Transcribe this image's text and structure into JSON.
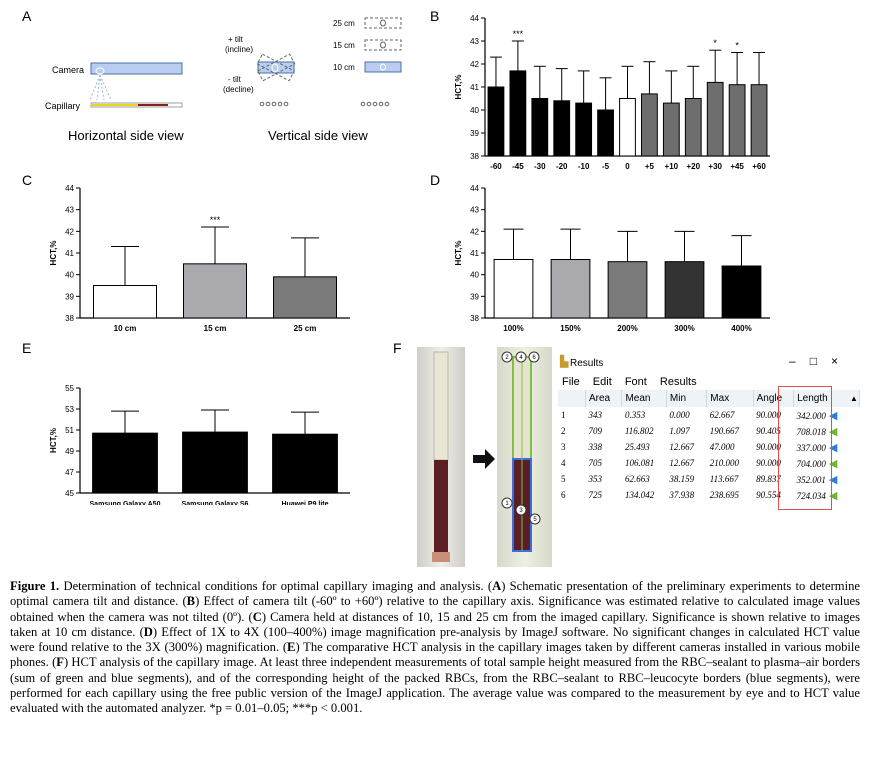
{
  "panels": {
    "a": {
      "letter": "A",
      "camera_label": "Camera",
      "capillary_label": "Capillary",
      "plus_tilt": "+ tilt",
      "incline": "(incline)",
      "minus_tilt": "- tilt",
      "decline": "(decline)",
      "d25": "25 cm",
      "d15": "15 cm",
      "d10": "10 cm",
      "horizontal": "Horizontal side view",
      "vertical": "Vertical side view"
    },
    "b": {
      "letter": "B"
    },
    "c": {
      "letter": "C"
    },
    "d": {
      "letter": "D"
    },
    "e": {
      "letter": "E"
    },
    "f": {
      "letter": "F"
    }
  },
  "chart_data": [
    {
      "type": "bar",
      "panel": "B",
      "ylabel": "HCT,%",
      "ylim": [
        38,
        44
      ],
      "yticks": [
        38,
        39,
        40,
        41,
        42,
        43,
        44
      ],
      "categories": [
        "-60",
        "-45",
        "-30",
        "-20",
        "-10",
        "-5",
        "0",
        "+5",
        "+10",
        "+20",
        "+30",
        "+45",
        "+60"
      ],
      "values": [
        41.0,
        41.7,
        40.5,
        40.4,
        40.3,
        40.0,
        40.5,
        40.7,
        40.3,
        40.5,
        41.2,
        41.1,
        41.1
      ],
      "errors": [
        1.3,
        1.3,
        1.4,
        1.4,
        1.4,
        1.4,
        1.4,
        1.4,
        1.4,
        1.4,
        1.4,
        1.4,
        1.4
      ],
      "colors": [
        "#000000",
        "#000000",
        "#000000",
        "#000000",
        "#000000",
        "#000000",
        "#ffffff",
        "#6e6e6e",
        "#6e6e6e",
        "#6e6e6e",
        "#6e6e6e",
        "#6e6e6e",
        "#6e6e6e"
      ],
      "annotations": [
        "",
        "***",
        "",
        "",
        "",
        "",
        "",
        "",
        "",
        "",
        "*",
        "*",
        ""
      ]
    },
    {
      "type": "bar",
      "panel": "C",
      "ylabel": "HCT,%",
      "ylim": [
        38,
        44
      ],
      "yticks": [
        38,
        39,
        40,
        41,
        42,
        43,
        44
      ],
      "categories": [
        "10 cm",
        "15 cm",
        "25 cm"
      ],
      "values": [
        39.5,
        40.5,
        39.9
      ],
      "errors": [
        1.8,
        1.7,
        1.8
      ],
      "colors": [
        "#ffffff",
        "#a9a9ae",
        "#7a7a7a"
      ],
      "annotations": [
        "",
        "***",
        ""
      ]
    },
    {
      "type": "bar",
      "panel": "D",
      "ylabel": "HCT,%",
      "ylim": [
        38,
        44
      ],
      "yticks": [
        38,
        39,
        40,
        41,
        42,
        43,
        44
      ],
      "categories": [
        "100%",
        "150%",
        "200%",
        "300%",
        "400%"
      ],
      "values": [
        40.7,
        40.7,
        40.6,
        40.6,
        40.4
      ],
      "errors": [
        1.4,
        1.4,
        1.4,
        1.4,
        1.4
      ],
      "colors": [
        "#ffffff",
        "#a9a9ae",
        "#7a7a7a",
        "#333333",
        "#000000"
      ],
      "annotations": [
        "",
        "",
        "",
        "",
        ""
      ]
    },
    {
      "type": "bar",
      "panel": "E",
      "ylabel": "HCT,%",
      "ylim": [
        45,
        55
      ],
      "yticks": [
        45,
        47,
        49,
        51,
        53,
        55
      ],
      "categories": [
        "Samsung Galaxy A50",
        "Samsung Galaxy S6",
        "Huawei P9 lite"
      ],
      "values": [
        50.7,
        50.8,
        50.6
      ],
      "errors": [
        2.1,
        2.1,
        2.1
      ],
      "colors": [
        "#000000",
        "#000000",
        "#000000"
      ],
      "annotations": [
        "",
        "",
        ""
      ]
    }
  ],
  "results": {
    "title": "Results",
    "menu": [
      "File",
      "Edit",
      "Font",
      "Results"
    ],
    "columns": [
      "",
      "Area",
      "Mean",
      "Min",
      "Max",
      "Angle",
      "Length"
    ],
    "rows": [
      [
        "1",
        "343",
        "0.353",
        "0.000",
        "62.667",
        "90.000",
        "342.000"
      ],
      [
        "2",
        "709",
        "116.802",
        "1.097",
        "190.667",
        "90.405",
        "708.018"
      ],
      [
        "3",
        "338",
        "25.493",
        "12.667",
        "47.000",
        "90.000",
        "337.000"
      ],
      [
        "4",
        "705",
        "106.081",
        "12.667",
        "210.000",
        "90.000",
        "704.000"
      ],
      [
        "5",
        "353",
        "62.663",
        "38.159",
        "113.667",
        "89.837",
        "352.001"
      ],
      [
        "6",
        "725",
        "134.042",
        "37.938",
        "238.695",
        "90.554",
        "724.034"
      ]
    ],
    "arrow_colors": [
      "#2f7fd0",
      "#6fb33a",
      "#2f7fd0",
      "#6fb33a",
      "#2f7fd0",
      "#6fb33a"
    ],
    "markers": [
      "1",
      "2",
      "3",
      "4",
      "5",
      "6"
    ]
  },
  "caption": {
    "lead": "Figure 1.",
    "parts": [
      [
        " Determination of technical conditions for optimal capillary imaging and analysis. (",
        ""
      ],
      [
        "",
        "A"
      ],
      [
        ") Schematic presentation of the preliminary experiments to determine optimal camera tilt and distance. (",
        ""
      ],
      [
        "",
        "B"
      ],
      [
        ") Effect of camera tilt (-60º to +60º) relative to the capillary axis. Significance was estimated relative to calculated image values obtained when the camera was not tilted (0º). (",
        ""
      ],
      [
        "",
        "C"
      ],
      [
        ") Camera held at distances of 10, 15 and 25 cm from the imaged capillary. Significance is shown relative to images taken at 10 cm distance. (",
        ""
      ],
      [
        "",
        "D"
      ],
      [
        ") Effect of 1X to 4X (100–400%) image magnification pre-analysis by ImageJ software. No significant changes in calculated HCT value were found relative to the 3X (300%) magnification. (",
        ""
      ],
      [
        "",
        "E"
      ],
      [
        ") The comparative HCT analysis in the capillary images taken by different cameras installed in various mobile phones. (",
        ""
      ],
      [
        "",
        "F"
      ],
      [
        ") HCT analysis of the capillary image. At least three independent measurements of total sample height measured from the RBC–sealant to plasma–air borders (sum of green and blue segments), and of the corresponding height of the packed RBCs, from the RBC–sealant to RBC–leucocyte borders (blue segments), were performed for each capillary using the free public version of the ImageJ application. The average value was compared to the measurement by eye and to HCT value evaluated with the automated analyzer. *p = 0.01–0.05; ***p < 0.001.",
        ""
      ]
    ]
  }
}
